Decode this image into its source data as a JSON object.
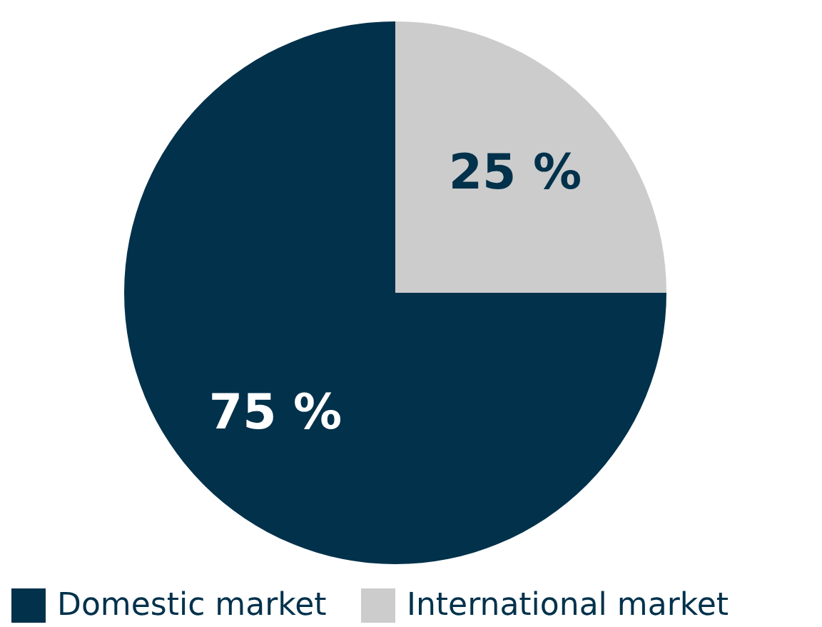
{
  "chart_data": {
    "type": "pie",
    "categories": [
      "Domestic market",
      "International market"
    ],
    "values": [
      75,
      25
    ],
    "colors": [
      "#01314b",
      "#cccccc"
    ],
    "value_labels": [
      "75 %",
      "25 %"
    ],
    "legend": "bottom"
  }
}
